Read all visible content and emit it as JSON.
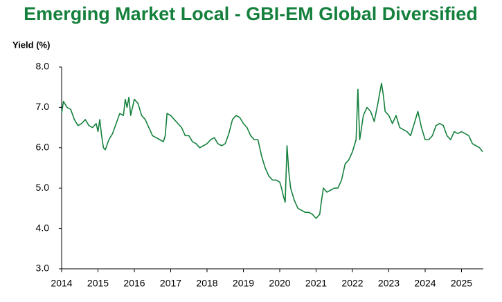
{
  "chart_data": {
    "type": "line",
    "title": "Emerging Market Local - GBI-EM Global Diversified",
    "y_label": "Yield (%)",
    "color": "#14803c",
    "x": [
      2014.0,
      2014.05,
      2014.15,
      2014.25,
      2014.35,
      2014.45,
      2014.55,
      2014.65,
      2014.75,
      2014.85,
      2014.95,
      2015.0,
      2015.05,
      2015.1,
      2015.15,
      2015.2,
      2015.3,
      2015.4,
      2015.5,
      2015.6,
      2015.7,
      2015.75,
      2015.8,
      2015.85,
      2015.9,
      2016.0,
      2016.1,
      2016.2,
      2016.3,
      2016.4,
      2016.5,
      2016.6,
      2016.7,
      2016.8,
      2016.85,
      2016.9,
      2017.0,
      2017.1,
      2017.2,
      2017.3,
      2017.4,
      2017.5,
      2017.6,
      2017.7,
      2017.8,
      2017.9,
      2018.0,
      2018.1,
      2018.2,
      2018.3,
      2018.4,
      2018.5,
      2018.6,
      2018.7,
      2018.8,
      2018.9,
      2019.0,
      2019.1,
      2019.2,
      2019.3,
      2019.4,
      2019.5,
      2019.6,
      2019.7,
      2019.8,
      2019.9,
      2020.0,
      2020.05,
      2020.1,
      2020.15,
      2020.2,
      2020.25,
      2020.3,
      2020.4,
      2020.5,
      2020.6,
      2020.7,
      2020.8,
      2020.9,
      2021.0,
      2021.1,
      2021.15,
      2021.2,
      2021.3,
      2021.4,
      2021.5,
      2021.6,
      2021.7,
      2021.8,
      2021.9,
      2022.0,
      2022.1,
      2022.15,
      2022.2,
      2022.3,
      2022.4,
      2022.5,
      2022.6,
      2022.7,
      2022.8,
      2022.85,
      2022.9,
      2023.0,
      2023.1,
      2023.2,
      2023.3,
      2023.4,
      2023.5,
      2023.6,
      2023.7,
      2023.8,
      2023.9,
      2024.0,
      2024.1,
      2024.2,
      2024.3,
      2024.4,
      2024.5,
      2024.6,
      2024.7,
      2024.8,
      2024.9,
      2025.0,
      2025.1,
      2025.2,
      2025.3,
      2025.4,
      2025.5,
      2025.58
    ],
    "values": [
      6.85,
      7.15,
      7.0,
      6.95,
      6.7,
      6.55,
      6.6,
      6.7,
      6.55,
      6.5,
      6.6,
      6.4,
      6.7,
      6.3,
      6.0,
      5.95,
      6.2,
      6.35,
      6.6,
      6.85,
      6.8,
      7.2,
      7.0,
      7.25,
      6.8,
      7.2,
      7.1,
      6.8,
      6.7,
      6.5,
      6.3,
      6.25,
      6.2,
      6.15,
      6.3,
      6.85,
      6.8,
      6.7,
      6.6,
      6.5,
      6.3,
      6.3,
      6.15,
      6.1,
      6.0,
      6.05,
      6.1,
      6.2,
      6.25,
      6.1,
      6.05,
      6.1,
      6.35,
      6.7,
      6.8,
      6.75,
      6.6,
      6.5,
      6.3,
      6.2,
      6.2,
      5.8,
      5.5,
      5.3,
      5.2,
      5.2,
      5.15,
      5.0,
      4.8,
      4.65,
      6.05,
      5.4,
      5.0,
      4.7,
      4.5,
      4.45,
      4.4,
      4.4,
      4.35,
      4.25,
      4.35,
      4.7,
      5.0,
      4.9,
      4.95,
      5.0,
      5.0,
      5.2,
      5.6,
      5.7,
      5.9,
      6.2,
      7.45,
      6.2,
      6.8,
      7.0,
      6.9,
      6.65,
      7.1,
      7.6,
      7.3,
      6.9,
      6.8,
      6.6,
      6.8,
      6.5,
      6.45,
      6.4,
      6.3,
      6.6,
      6.9,
      6.5,
      6.2,
      6.2,
      6.3,
      6.55,
      6.6,
      6.55,
      6.3,
      6.2,
      6.4,
      6.35,
      6.4,
      6.35,
      6.3,
      6.1,
      6.05,
      6.0,
      5.9
    ],
    "xlim": [
      2014,
      2025.6
    ],
    "xticks": [
      2014,
      2015,
      2016,
      2017,
      2018,
      2019,
      2020,
      2021,
      2022,
      2023,
      2024,
      2025
    ],
    "ylim": [
      3,
      8
    ],
    "yticks": [
      {
        "value": 3,
        "label": "3.0"
      },
      {
        "value": 4,
        "label": "4.0"
      },
      {
        "value": 5,
        "label": "5.0"
      },
      {
        "value": 6,
        "label": "6.0"
      },
      {
        "value": 7,
        "label": "7.0"
      },
      {
        "value": 8,
        "label": "8.0"
      }
    ],
    "grid": false
  }
}
